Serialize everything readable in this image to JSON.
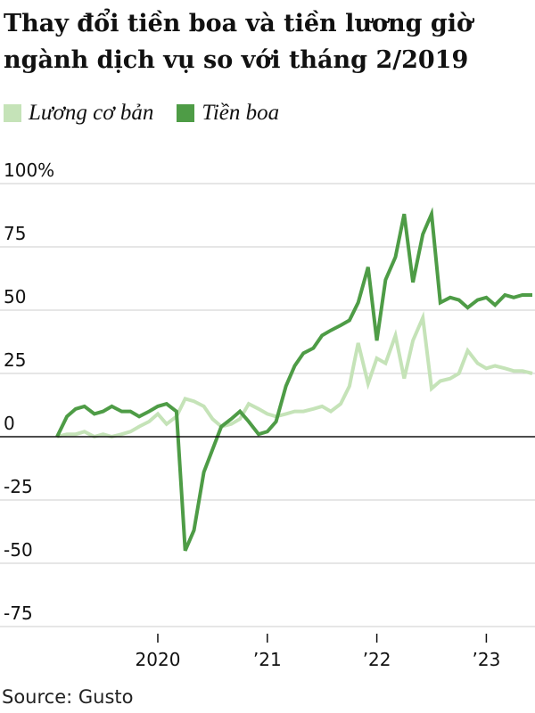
{
  "chart_data": {
    "type": "line",
    "title": "Thay đổi tiền boa và tiền lương giờ ngành dịch vụ so với tháng 2/2019",
    "source": "Source: Gusto",
    "colors": {
      "base": "#c5e3b8",
      "tips": "#4e9c46",
      "grid": "#cccccc",
      "zero": "#111111"
    },
    "y_ticks": [
      {
        "value": 100,
        "label": "100%"
      },
      {
        "value": 75,
        "label": "75"
      },
      {
        "value": 50,
        "label": "50"
      },
      {
        "value": 25,
        "label": "25"
      },
      {
        "value": 0,
        "label": "0"
      },
      {
        "value": -25,
        "label": "-25"
      },
      {
        "value": -50,
        "label": "-50"
      },
      {
        "value": -75,
        "label": "-75"
      }
    ],
    "x_ticks": [
      {
        "value": 2020.0,
        "label": "2020"
      },
      {
        "value": 2021.0,
        "label": "’21"
      },
      {
        "value": 2022.0,
        "label": "’22"
      },
      {
        "value": 2023.0,
        "label": "’23"
      }
    ],
    "xlim": [
      2019.0,
      2023.42
    ],
    "ylim": [
      -80,
      100
    ],
    "grid": true,
    "legend": "top-left",
    "series": [
      {
        "name": "Lương cơ bản",
        "x": [
          2019.08,
          2019.17,
          2019.25,
          2019.33,
          2019.42,
          2019.5,
          2019.58,
          2019.67,
          2019.75,
          2019.83,
          2019.92,
          2020.0,
          2020.08,
          2020.17,
          2020.25,
          2020.33,
          2020.42,
          2020.5,
          2020.58,
          2020.67,
          2020.75,
          2020.83,
          2020.92,
          2021.0,
          2021.08,
          2021.17,
          2021.25,
          2021.33,
          2021.42,
          2021.5,
          2021.58,
          2021.67,
          2021.75,
          2021.83,
          2021.92,
          2022.0,
          2022.08,
          2022.17,
          2022.25,
          2022.33,
          2022.42,
          2022.5,
          2022.58,
          2022.67,
          2022.75,
          2022.83,
          2022.92,
          2023.0,
          2023.08,
          2023.17,
          2023.25,
          2023.33,
          2023.42
        ],
        "values": [
          0,
          1,
          1,
          2,
          0,
          1,
          0,
          1,
          2,
          4,
          6,
          9,
          5,
          8,
          15,
          14,
          12,
          7,
          4,
          5,
          7,
          13,
          11,
          9,
          8,
          9,
          10,
          10,
          11,
          12,
          10,
          13,
          20,
          37,
          21,
          31,
          29,
          40,
          23,
          38,
          47,
          19,
          22,
          23,
          25,
          34,
          29,
          27,
          28,
          27,
          26,
          26,
          25
        ]
      },
      {
        "name": "Tiền boa",
        "x": [
          2019.08,
          2019.17,
          2019.25,
          2019.33,
          2019.42,
          2019.5,
          2019.58,
          2019.67,
          2019.75,
          2019.83,
          2019.92,
          2020.0,
          2020.08,
          2020.17,
          2020.25,
          2020.33,
          2020.42,
          2020.5,
          2020.58,
          2020.67,
          2020.75,
          2020.83,
          2020.92,
          2021.0,
          2021.08,
          2021.17,
          2021.25,
          2021.33,
          2021.42,
          2021.5,
          2021.58,
          2021.67,
          2021.75,
          2021.83,
          2021.92,
          2022.0,
          2022.08,
          2022.17,
          2022.25,
          2022.33,
          2022.42,
          2022.5,
          2022.58,
          2022.67,
          2022.75,
          2022.83,
          2022.92,
          2023.0,
          2023.08,
          2023.17,
          2023.25,
          2023.33,
          2023.42
        ],
        "values": [
          0,
          8,
          11,
          12,
          9,
          10,
          12,
          10,
          10,
          8,
          10,
          12,
          13,
          10,
          -45,
          -37,
          -14,
          -5,
          4,
          7,
          10,
          6,
          1,
          2,
          6,
          20,
          28,
          33,
          35,
          40,
          42,
          44,
          46,
          53,
          67,
          38,
          62,
          71,
          88,
          61,
          80,
          88,
          53,
          55,
          54,
          51,
          54,
          55,
          52,
          56,
          55,
          56,
          56
        ]
      }
    ]
  }
}
